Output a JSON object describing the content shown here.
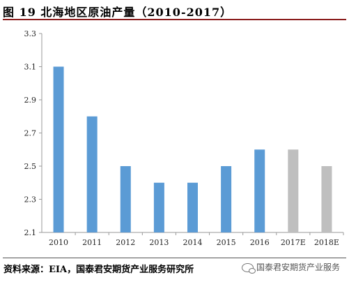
{
  "header": {
    "title": "图 19 北海地区原油产量（2010-2017）"
  },
  "chart_data": {
    "type": "bar",
    "title": "图 19 北海地区原油产量（2010-2017）",
    "xlabel": "",
    "ylabel": "",
    "categories": [
      "2010",
      "2011",
      "2012",
      "2013",
      "2014",
      "2015",
      "2016",
      "2017E",
      "2018E"
    ],
    "values": [
      3.1,
      2.8,
      2.5,
      2.4,
      2.4,
      2.5,
      2.6,
      2.6,
      2.5
    ],
    "bar_colors": [
      "#5b9bd5",
      "#5b9bd5",
      "#5b9bd5",
      "#5b9bd5",
      "#5b9bd5",
      "#5b9bd5",
      "#5b9bd5",
      "#bfbfbf",
      "#bfbfbf"
    ],
    "ylim": [
      2.1,
      3.3
    ],
    "yticks": [
      "2.1",
      "2.3",
      "2.5",
      "2.7",
      "2.9",
      "3.1",
      "3.3"
    ],
    "grid": false,
    "legend": "none"
  },
  "footer": {
    "source": "资料来源：EIA，国泰君安期货产业服务研究所",
    "watermark": "国泰君安期货产业服务",
    "watermark_icon": "chat-bubbles-icon"
  }
}
